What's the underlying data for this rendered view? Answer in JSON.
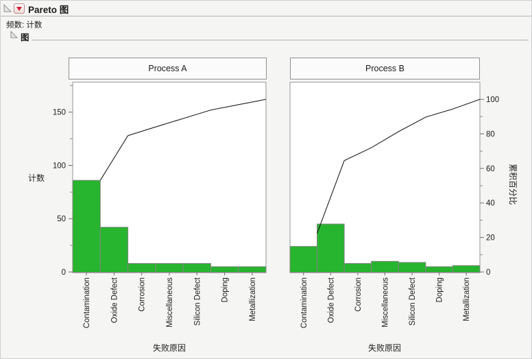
{
  "window": {
    "title": "Pareto 图",
    "frequency_label": "频数: 计数",
    "section_title": "图"
  },
  "chart_data": {
    "type": "pareto",
    "categories": [
      "Contamination",
      "Oxide Defect",
      "Corrosion",
      "Miscellaneous",
      "Silicon Defect",
      "Doping",
      "Metallization"
    ],
    "xlabel": "失败原因",
    "ylabel_left": "计数",
    "ylabel_right": "累积百分比",
    "bar_color": "#27b42e",
    "bar_border_color": "#848484",
    "line_color": "#1c1c1c",
    "frame_color": "#949494",
    "count_axis": {
      "min": 0,
      "max": 178,
      "major_ticks": [
        0,
        50,
        100,
        150
      ],
      "minor_ticks": [
        25,
        75,
        125,
        175
      ]
    },
    "percent_axis": {
      "min": 0,
      "max": 100,
      "major_ticks": [
        0,
        20,
        40,
        60,
        80,
        100
      ],
      "minor_ticks": [
        10,
        30,
        50,
        70,
        90
      ]
    },
    "panels": [
      {
        "label": "Process A",
        "total": 162,
        "values": [
          86,
          42,
          8,
          8,
          8,
          5,
          5
        ],
        "cumulative_pct": [
          53.1,
          79.0,
          84.0,
          88.9,
          93.8,
          96.9,
          100
        ]
      },
      {
        "label": "Process B",
        "total": 107,
        "values": [
          24,
          45,
          8,
          10,
          9,
          5,
          6
        ],
        "cumulative_pct": [
          22.4,
          64.5,
          72.0,
          81.3,
          89.7,
          94.4,
          100
        ]
      }
    ]
  }
}
